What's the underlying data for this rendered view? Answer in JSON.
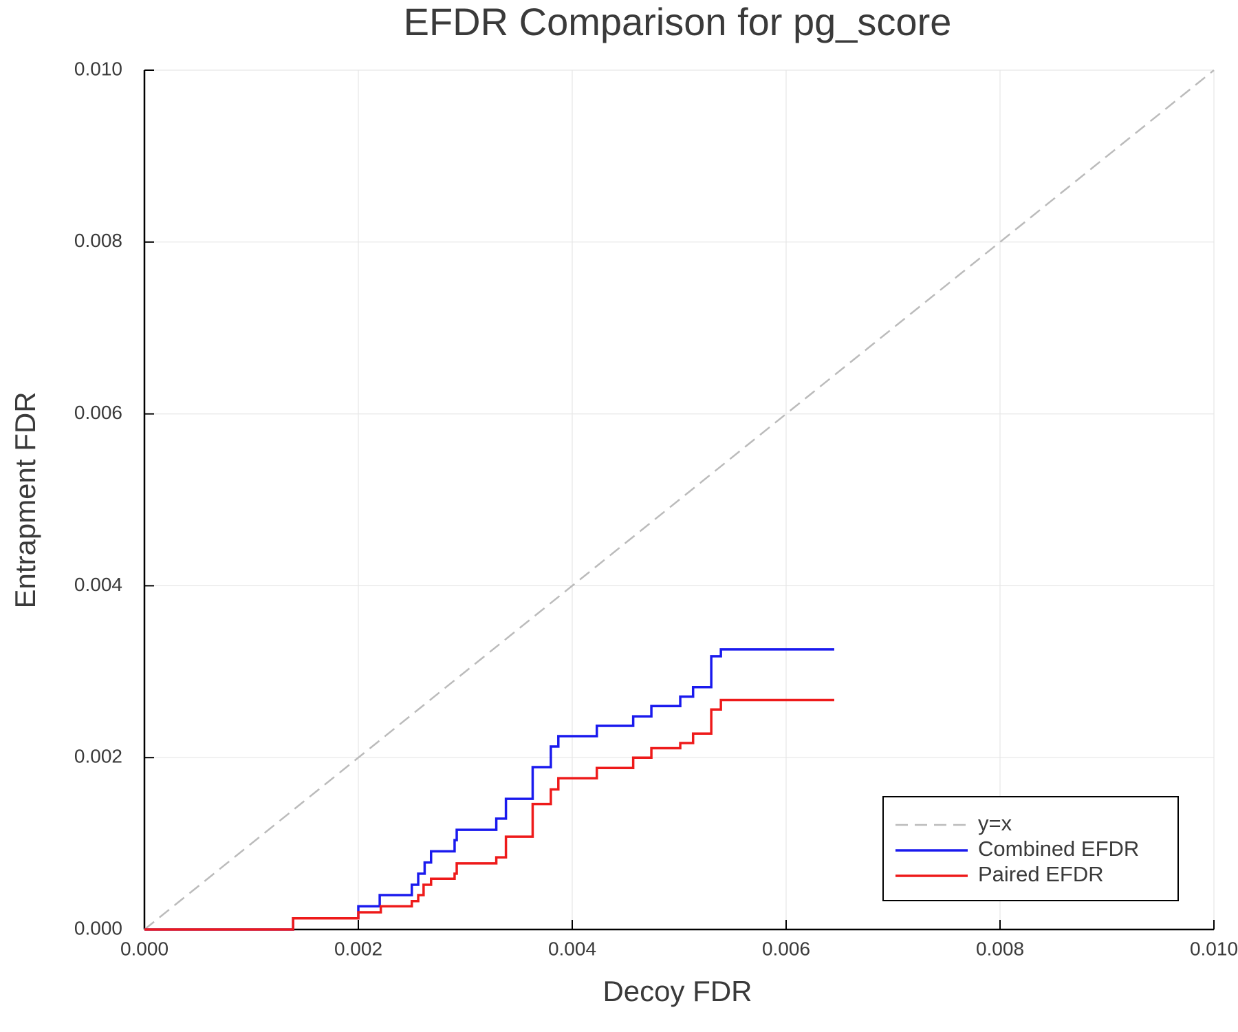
{
  "chart_data": {
    "type": "line",
    "title": "EFDR Comparison for pg_score",
    "x_label": "Decoy FDR",
    "y_label": "Entrapment FDR",
    "xlim": [
      0,
      0.01
    ],
    "ylim": [
      0,
      0.01
    ],
    "xticks": [
      {
        "value": 0,
        "label": "0.000"
      },
      {
        "value": 0.002,
        "label": "0.002"
      },
      {
        "value": 0.004,
        "label": "0.004"
      },
      {
        "value": 0.006,
        "label": "0.006"
      },
      {
        "value": 0.008,
        "label": "0.008"
      },
      {
        "value": 0.01,
        "label": "0.010"
      }
    ],
    "yticks": [
      {
        "value": 0,
        "label": "0.000"
      },
      {
        "value": 0.002,
        "label": "0.002"
      },
      {
        "value": 0.004,
        "label": "0.004"
      },
      {
        "value": 0.006,
        "label": "0.006"
      },
      {
        "value": 0.008,
        "label": "0.008"
      },
      {
        "value": 0.01,
        "label": "0.010"
      }
    ],
    "grid": true,
    "legend": "lower right",
    "series": [
      {
        "name": "y=x",
        "color": "#bbbbbb",
        "dash": true,
        "x": [
          0,
          0.01
        ],
        "values": [
          0,
          0.01
        ]
      },
      {
        "name": "Combined EFDR",
        "color": "#1a1aee",
        "dash": false,
        "x": [
          0,
          0.00139,
          0.00139,
          0.002,
          0.002,
          0.0022,
          0.0022,
          0.0025,
          0.0025,
          0.00256,
          0.00256,
          0.00262,
          0.00262,
          0.00268,
          0.00268,
          0.0029,
          0.0029,
          0.00292,
          0.00292,
          0.00329,
          0.00329,
          0.00338,
          0.00338,
          0.00363,
          0.00363,
          0.0038,
          0.0038,
          0.00387,
          0.00387,
          0.00423,
          0.00423,
          0.00457,
          0.00457,
          0.00474,
          0.00474,
          0.00501,
          0.00501,
          0.00513,
          0.00513,
          0.0053,
          0.0053,
          0.00539,
          0.00539,
          0.00645
        ],
        "values": [
          0,
          0,
          0.00013,
          0.00013,
          0.00027,
          0.00027,
          0.0004,
          0.0004,
          0.00052,
          0.00052,
          0.00065,
          0.00065,
          0.00078,
          0.00078,
          0.00091,
          0.00091,
          0.00104,
          0.00104,
          0.00116,
          0.00116,
          0.00129,
          0.00129,
          0.00152,
          0.00152,
          0.00189,
          0.00189,
          0.00213,
          0.00213,
          0.00225,
          0.00225,
          0.00237,
          0.00237,
          0.00248,
          0.00248,
          0.0026,
          0.0026,
          0.00271,
          0.00271,
          0.00282,
          0.00282,
          0.00318,
          0.00318,
          0.00326,
          0.00326
        ]
      },
      {
        "name": "Paired EFDR",
        "color": "#ee1a1a",
        "dash": false,
        "x": [
          0,
          0.00139,
          0.00139,
          0.002,
          0.002,
          0.00221,
          0.00221,
          0.0025,
          0.0025,
          0.00256,
          0.00256,
          0.00261,
          0.00261,
          0.00268,
          0.00268,
          0.0029,
          0.0029,
          0.00292,
          0.00292,
          0.00329,
          0.00329,
          0.00338,
          0.00338,
          0.00363,
          0.00363,
          0.0038,
          0.0038,
          0.00387,
          0.00387,
          0.00423,
          0.00423,
          0.00457,
          0.00457,
          0.00474,
          0.00474,
          0.00501,
          0.00501,
          0.00513,
          0.00513,
          0.0053,
          0.0053,
          0.00539,
          0.00539,
          0.00645
        ],
        "values": [
          0,
          0,
          0.00013,
          0.00013,
          0.0002,
          0.0002,
          0.00027,
          0.00027,
          0.00033,
          0.00033,
          0.0004,
          0.0004,
          0.00052,
          0.00052,
          0.00059,
          0.00059,
          0.00065,
          0.00065,
          0.00077,
          0.00077,
          0.00084,
          0.00084,
          0.00108,
          0.00108,
          0.00146,
          0.00146,
          0.00163,
          0.00163,
          0.00176,
          0.00176,
          0.00188,
          0.00188,
          0.002,
          0.002,
          0.00211,
          0.00211,
          0.00217,
          0.00217,
          0.00228,
          0.00228,
          0.00256,
          0.00256,
          0.00267,
          0.00267
        ]
      }
    ]
  }
}
